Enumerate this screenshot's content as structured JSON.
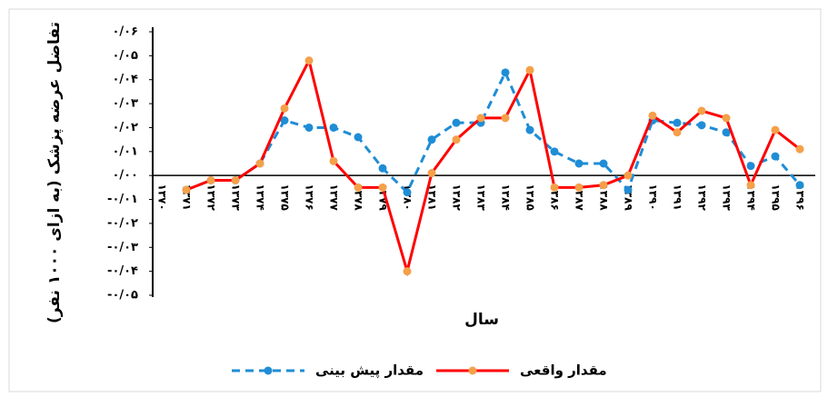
{
  "chart_data": {
    "type": "line",
    "y_label": "تفاضل عرضه پزشک (به ازای ۱۰۰۰ نفر)",
    "x_label": "سال",
    "categories": [
      "۱۳۷۰",
      "۱۳۷۱",
      "۱۳۷۲",
      "۱۳۷۳",
      "۱۳۷۴",
      "۱۳۷۵",
      "۱۳۷۶",
      "۱۳۷۷",
      "۱۳۷۸",
      "۱۳۷۹",
      "۱۳۸۰",
      "۱۳۸۱",
      "۱۳۸۲",
      "۱۳۸۳",
      "۱۳۸۴",
      "۱۳۸۵",
      "۱۳۸۶",
      "۱۳۸۷",
      "۱۳۸۸",
      "۱۳۸۹",
      "۱۳۹۰",
      "۱۳۹۱",
      "۱۳۹۲",
      "۱۳۹۳",
      "۱۳۹۴",
      "۱۳۹۵",
      "۱۳۹۶"
    ],
    "series": [
      {
        "name": "مقدار پیش بینی",
        "color": "#1f8dd6",
        "dashed": true,
        "values": [
          null,
          -0.006,
          -0.002,
          -0.002,
          0.005,
          0.023,
          0.02,
          0.02,
          0.016,
          0.003,
          -0.007,
          0.015,
          0.022,
          0.022,
          0.043,
          0.019,
          0.01,
          0.005,
          0.005,
          -0.006,
          0.023,
          0.022,
          0.021,
          0.018,
          0.004,
          0.008,
          -0.004
        ]
      },
      {
        "name": "مقدار واقعی",
        "color": "#ff0000",
        "dashed": false,
        "values": [
          null,
          -0.006,
          -0.002,
          -0.002,
          0.005,
          0.028,
          0.048,
          0.006,
          -0.005,
          -0.005,
          -0.04,
          0.001,
          0.015,
          0.024,
          0.024,
          0.044,
          -0.005,
          -0.005,
          -0.004,
          0.0,
          0.025,
          0.018,
          0.027,
          0.024,
          -0.004,
          0.019,
          0.011
        ]
      }
    ],
    "marker_color": "#f5a04a",
    "ylim": [
      -0.05,
      0.06
    ],
    "yticks": [
      {
        "value": -0.05,
        "label": "-۰/۰۵"
      },
      {
        "value": -0.04,
        "label": "-۰/۰۴"
      },
      {
        "value": -0.03,
        "label": "-۰/۰۳"
      },
      {
        "value": -0.02,
        "label": "-۰/۰۲"
      },
      {
        "value": -0.01,
        "label": "-۰/۰۱"
      },
      {
        "value": 0,
        "label": "۰/۰۰"
      },
      {
        "value": 0.01,
        "label": "۰/۰۱"
      },
      {
        "value": 0.02,
        "label": "۰/۰۲"
      },
      {
        "value": 0.03,
        "label": "۰/۰۳"
      },
      {
        "value": 0.04,
        "label": "۰/۰۴"
      },
      {
        "value": 0.05,
        "label": "۰/۰۵"
      },
      {
        "value": 0.06,
        "label": "۰/۰۶"
      }
    ]
  }
}
